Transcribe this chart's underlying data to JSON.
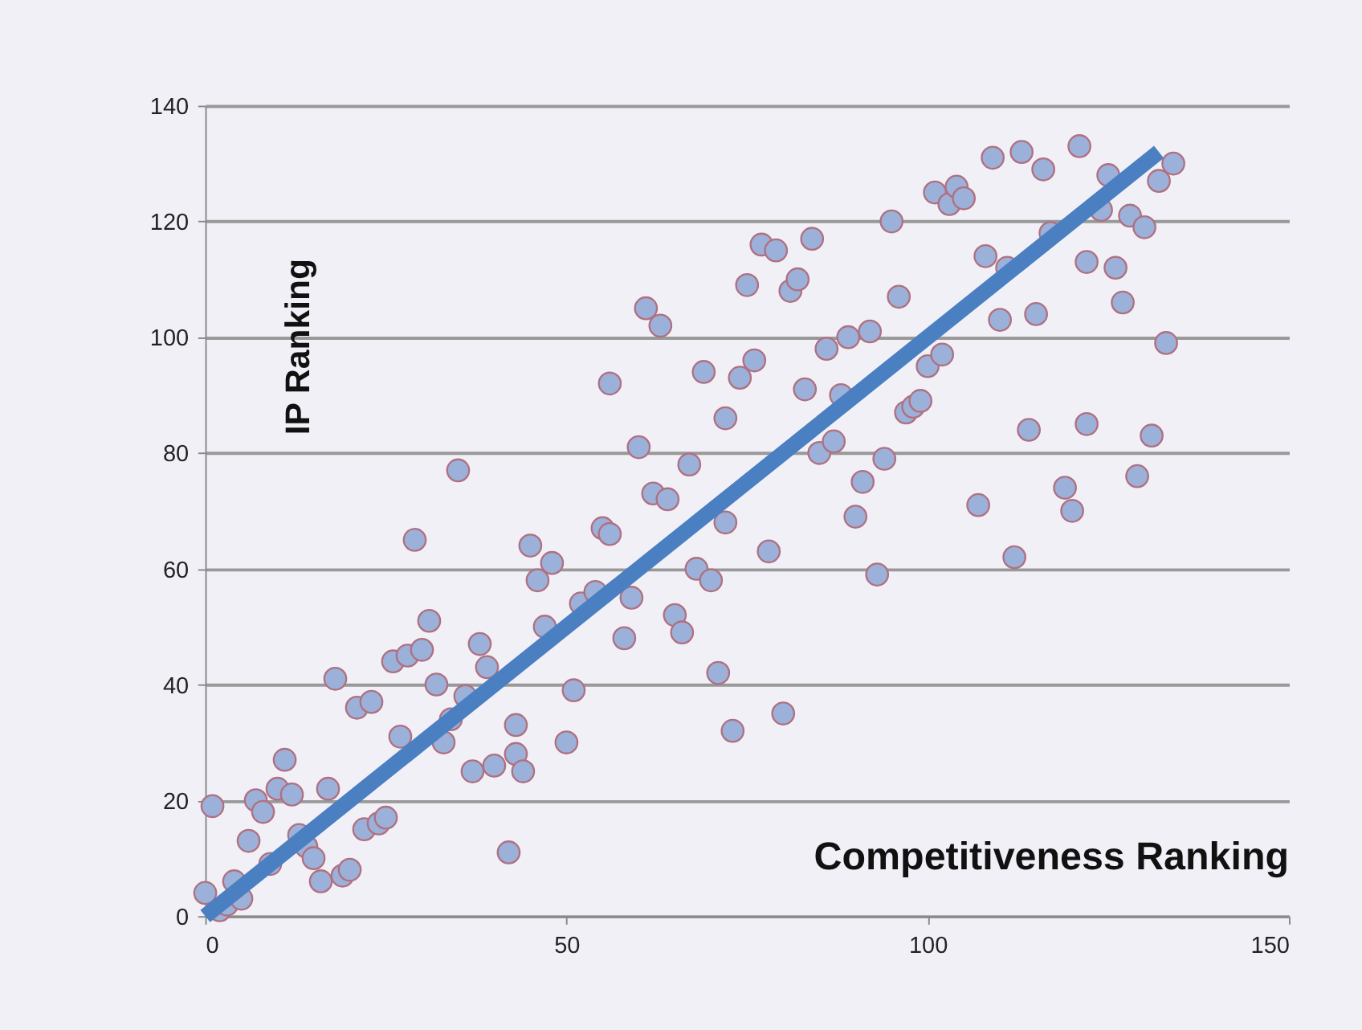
{
  "chart_data": {
    "type": "scatter",
    "xlabel": "Competitiveness Ranking",
    "ylabel": "IP Ranking",
    "xlim": [
      0,
      150
    ],
    "xticks": [
      0,
      50,
      100,
      150
    ],
    "ylim": [
      0,
      140
    ],
    "yticks": [
      0,
      20,
      40,
      60,
      80,
      100,
      120,
      140
    ],
    "grid": "y",
    "series": [
      {
        "color": "#9bb1d9",
        "marker": "circle",
        "x": [
          0,
          1,
          2,
          3,
          4,
          5,
          6,
          7,
          8,
          9,
          10,
          11,
          12,
          13,
          14,
          15,
          16,
          17,
          18,
          19,
          20,
          21,
          22,
          23,
          24,
          25,
          26,
          27,
          28,
          29,
          30,
          31,
          32,
          33,
          34,
          35,
          36,
          37,
          38,
          39,
          40,
          42,
          43,
          43,
          44,
          45,
          46,
          47,
          48,
          50,
          51,
          52,
          54,
          55,
          56,
          56,
          58,
          59,
          60,
          61,
          62,
          63,
          64,
          65,
          66,
          67,
          68,
          69,
          70,
          71,
          72,
          72,
          73,
          74,
          75,
          76,
          77,
          78,
          79,
          80,
          81,
          82,
          83,
          84,
          85,
          86,
          87,
          88,
          89,
          90,
          91,
          92,
          93,
          94,
          95,
          96,
          97,
          98,
          99,
          100,
          101,
          102,
          103,
          104,
          105,
          107,
          108,
          109,
          110,
          111,
          112,
          113,
          114,
          115,
          116,
          117,
          119,
          120,
          121,
          122,
          122,
          124,
          125,
          126,
          127,
          128,
          129,
          130,
          131,
          132,
          133,
          134
        ],
        "values": [
          4,
          19,
          1,
          2,
          6,
          3,
          13,
          20,
          18,
          9,
          22,
          27,
          21,
          14,
          12,
          10,
          6,
          22,
          41,
          7,
          8,
          36,
          15,
          37,
          16,
          17,
          44,
          31,
          45,
          65,
          46,
          51,
          40,
          30,
          34,
          77,
          38,
          25,
          47,
          43,
          26,
          11,
          33,
          28,
          25,
          64,
          58,
          50,
          61,
          30,
          39,
          54,
          56,
          67,
          66,
          92,
          48,
          55,
          81,
          105,
          73,
          102,
          72,
          52,
          49,
          78,
          60,
          94,
          58,
          42,
          68,
          86,
          32,
          93,
          109,
          96,
          116,
          63,
          115,
          35,
          108,
          110,
          91,
          117,
          80,
          98,
          82,
          90,
          100,
          69,
          75,
          101,
          59,
          79,
          120,
          107,
          87,
          88,
          89,
          95,
          125,
          97,
          123,
          126,
          124,
          71,
          114,
          131,
          103,
          112,
          62,
          132,
          84,
          104,
          129,
          118,
          74,
          70,
          133,
          113,
          85,
          122,
          128,
          112,
          106,
          121,
          76,
          119,
          83,
          127,
          99,
          130
        ]
      },
      {
        "type": "line",
        "marker": "none",
        "color": "#4a7fc1",
        "x": [
          0,
          132
        ],
        "values": [
          0,
          132
        ]
      }
    ]
  }
}
